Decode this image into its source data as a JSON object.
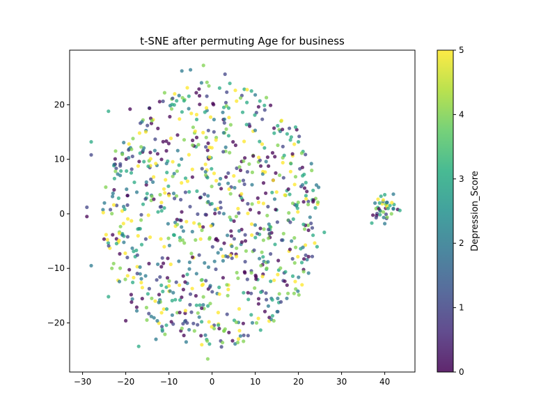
{
  "chart_data": {
    "type": "scatter",
    "title": "t-SNE after permuting Age for business",
    "xlabel": "",
    "ylabel": "",
    "xlim": [
      -33,
      47
    ],
    "ylim": [
      -29,
      30
    ],
    "xticks": [
      -30,
      -20,
      -10,
      0,
      10,
      20,
      30,
      40
    ],
    "yticks": [
      -20,
      -10,
      0,
      10,
      20
    ],
    "grid": false,
    "colorbar": {
      "label": "Depression_Score",
      "range": [
        0,
        5
      ],
      "ticks": [
        0,
        1,
        2,
        3,
        4,
        5
      ],
      "colormap": "viridis"
    },
    "marker_alpha": 0.75,
    "n_points": 900,
    "main_cluster": {
      "center": [
        0,
        0
      ],
      "x_range": [
        -29,
        26
      ],
      "y_range": [
        -27,
        27.5
      ]
    },
    "side_cluster": {
      "center": [
        40,
        1
      ],
      "x_range": [
        36.5,
        43.5
      ],
      "y_range": [
        -2,
        4
      ]
    },
    "sample_points": [
      [
        -2,
        27.2
      ],
      [
        3,
        25.6
      ],
      [
        -7,
        26.2
      ],
      [
        -5,
        26.4
      ],
      [
        10,
        21.8
      ],
      [
        -11,
        22.2
      ],
      [
        -24,
        18.8
      ],
      [
        -19,
        19.2
      ],
      [
        -16,
        17.2
      ],
      [
        16,
        17
      ],
      [
        -28,
        13.2
      ],
      [
        -28,
        10.8
      ],
      [
        20,
        13.2
      ],
      [
        23,
        9.2
      ],
      [
        -29,
        1.2
      ],
      [
        -29,
        -0.5
      ],
      [
        26,
        -3.4
      ],
      [
        24,
        2.8
      ],
      [
        -28,
        -9.5
      ],
      [
        -24,
        -15.2
      ],
      [
        -20,
        -19.6
      ],
      [
        -17,
        -24.3
      ],
      [
        -13,
        -23
      ],
      [
        -1,
        -26.6
      ],
      [
        2,
        -23.3
      ],
      [
        -6,
        -23.5
      ],
      [
        14,
        -18.7
      ],
      [
        19,
        -14.6
      ],
      [
        22,
        -8.4
      ],
      [
        40,
        3.5
      ],
      [
        42,
        3.6
      ],
      [
        43,
        0.8
      ],
      [
        37,
        -1.7
      ],
      [
        40,
        -1.8
      ],
      [
        39,
        0.5
      ]
    ],
    "sample_values": [
      4,
      1,
      2,
      2,
      2,
      4,
      3,
      0,
      4,
      4,
      3,
      1,
      3,
      2,
      1,
      0,
      3,
      4,
      2,
      3,
      0,
      3,
      2,
      4,
      1,
      2,
      3,
      4,
      2,
      3,
      2,
      0,
      3,
      2,
      4
    ]
  }
}
